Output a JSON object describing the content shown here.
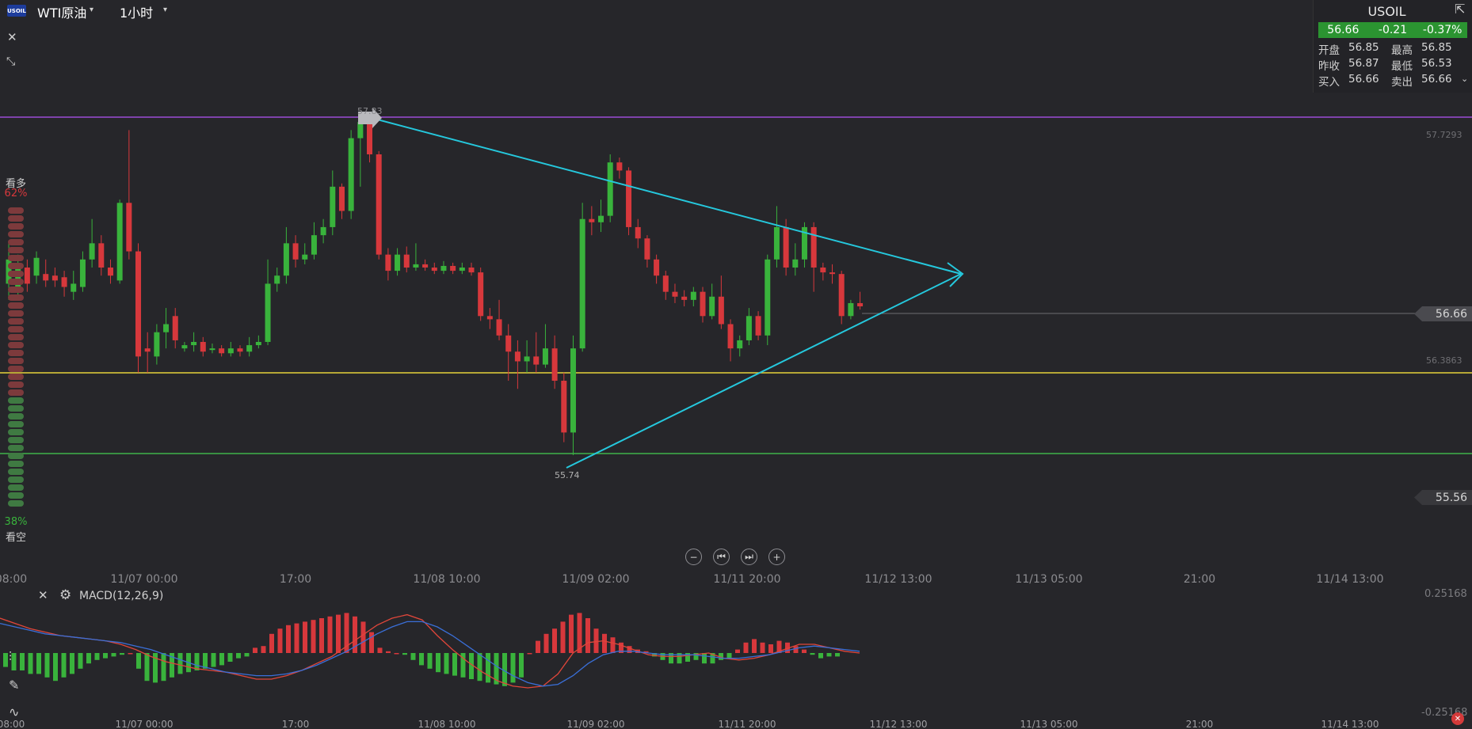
{
  "header": {
    "symbol_logo": "USOIL",
    "symbol_name": "WTI原油",
    "timeframe": "1小时",
    "dropdown_icon": "chevron-down-icon"
  },
  "quote": {
    "title": "USOIL",
    "price": "56.66",
    "change": "-0.21",
    "change_pct": "-0.37%",
    "rows": [
      {
        "l1": "开盘",
        "v1": "56.85",
        "l2": "最高",
        "v2": "56.85"
      },
      {
        "l1": "昨收",
        "v1": "56.87",
        "l2": "最低",
        "v2": "56.53"
      },
      {
        "l1": "买入",
        "v1": "56.66",
        "l2": "卖出",
        "v2": "56.66"
      }
    ],
    "up_color": "#2b9431"
  },
  "sentiment": {
    "bull_label": "看多",
    "bull_pct": "62%",
    "bear_pct": "38%",
    "bear_label": "看空",
    "bull_fraction": 0.62
  },
  "price_tags": {
    "current": "56.66",
    "low_right": "55.56",
    "top_level": "57.7293",
    "mid_level": "56.3863",
    "high_label": "57.83",
    "low_label": "55.74"
  },
  "x_axis_labels": [
    "08:00",
    "11/07 00:00",
    "17:00",
    "11/08 10:00",
    "11/09 02:00",
    "11/11 20:00",
    "11/12 13:00",
    "11/13 05:00",
    "21:00",
    "11/14 13:00"
  ],
  "macd": {
    "label": "MACD(12,26,9)",
    "top_value": "0.25168",
    "bottom_value": "-0.25168"
  },
  "colors": {
    "up": "#39b33c",
    "down": "#d7383c",
    "background": "#26262a",
    "purple_line": "#9c4bd6",
    "yellow_line": "#e6d23a",
    "green_line": "#3fb34a",
    "trend_line": "#25c8dd"
  },
  "chart_data": {
    "type": "candlestick",
    "title": "WTI原油",
    "timeframe": "1小时",
    "horizontal_lines": [
      57.83,
      56.3863,
      55.56
    ],
    "current_price": 56.66,
    "candles": [
      {
        "o": 56.8,
        "c": 56.95,
        "h": 57.05,
        "l": 56.7
      },
      {
        "o": 56.75,
        "c": 56.9,
        "h": 56.98,
        "l": 56.7
      },
      {
        "o": 56.9,
        "c": 56.8,
        "h": 56.95,
        "l": 56.75
      },
      {
        "o": 56.85,
        "c": 56.96,
        "h": 57.0,
        "l": 56.8
      },
      {
        "o": 56.86,
        "c": 56.82,
        "h": 56.95,
        "l": 56.78
      },
      {
        "o": 56.85,
        "c": 56.82,
        "h": 56.9,
        "l": 56.78
      },
      {
        "o": 56.84,
        "c": 56.78,
        "h": 56.88,
        "l": 56.72
      },
      {
        "o": 56.75,
        "c": 56.8,
        "h": 56.88,
        "l": 56.7
      },
      {
        "o": 56.78,
        "c": 56.95,
        "h": 57.0,
        "l": 56.75
      },
      {
        "o": 56.95,
        "c": 57.05,
        "h": 57.2,
        "l": 56.9
      },
      {
        "o": 57.05,
        "c": 56.9,
        "h": 57.1,
        "l": 56.85
      },
      {
        "o": 56.9,
        "c": 56.85,
        "h": 56.95,
        "l": 56.8
      },
      {
        "o": 56.82,
        "c": 57.3,
        "h": 57.32,
        "l": 56.8
      },
      {
        "o": 57.3,
        "c": 57.0,
        "h": 57.75,
        "l": 56.95
      },
      {
        "o": 57.0,
        "c": 56.35,
        "h": 57.05,
        "l": 56.25
      },
      {
        "o": 56.4,
        "c": 56.38,
        "h": 56.5,
        "l": 56.25
      },
      {
        "o": 56.35,
        "c": 56.5,
        "h": 56.55,
        "l": 56.3
      },
      {
        "o": 56.5,
        "c": 56.55,
        "h": 56.65,
        "l": 56.4
      },
      {
        "o": 56.6,
        "c": 56.45,
        "h": 56.65,
        "l": 56.4
      },
      {
        "o": 56.4,
        "c": 56.42,
        "h": 56.44,
        "l": 56.38
      },
      {
        "o": 56.42,
        "c": 56.44,
        "h": 56.5,
        "l": 56.38
      },
      {
        "o": 56.44,
        "c": 56.38,
        "h": 56.47,
        "l": 56.35
      },
      {
        "o": 56.39,
        "c": 56.4,
        "h": 56.43,
        "l": 56.37
      },
      {
        "o": 56.4,
        "c": 56.37,
        "h": 56.42,
        "l": 56.35
      },
      {
        "o": 56.37,
        "c": 56.4,
        "h": 56.44,
        "l": 56.35
      },
      {
        "o": 56.4,
        "c": 56.38,
        "h": 56.42,
        "l": 56.35
      },
      {
        "o": 56.38,
        "c": 56.42,
        "h": 56.47,
        "l": 56.35
      },
      {
        "o": 56.42,
        "c": 56.44,
        "h": 56.48,
        "l": 56.4
      },
      {
        "o": 56.44,
        "c": 56.8,
        "h": 56.95,
        "l": 56.42
      },
      {
        "o": 56.8,
        "c": 56.85,
        "h": 56.9,
        "l": 56.75
      },
      {
        "o": 56.85,
        "c": 57.05,
        "h": 57.15,
        "l": 56.8
      },
      {
        "o": 57.05,
        "c": 56.95,
        "h": 57.1,
        "l": 56.9
      },
      {
        "o": 56.95,
        "c": 56.98,
        "h": 57.05,
        "l": 56.92
      },
      {
        "o": 56.98,
        "c": 57.1,
        "h": 57.18,
        "l": 56.95
      },
      {
        "o": 57.1,
        "c": 57.15,
        "h": 57.2,
        "l": 57.05
      },
      {
        "o": 57.15,
        "c": 57.4,
        "h": 57.5,
        "l": 57.1
      },
      {
        "o": 57.4,
        "c": 57.25,
        "h": 57.42,
        "l": 57.2
      },
      {
        "o": 57.25,
        "c": 57.7,
        "h": 57.75,
        "l": 57.2
      },
      {
        "o": 57.7,
        "c": 57.8,
        "h": 57.83,
        "l": 57.4
      },
      {
        "o": 57.8,
        "c": 57.6,
        "h": 57.82,
        "l": 57.55
      },
      {
        "o": 57.6,
        "c": 56.98,
        "h": 57.62,
        "l": 56.95
      },
      {
        "o": 56.98,
        "c": 56.88,
        "h": 57.02,
        "l": 56.82
      },
      {
        "o": 56.88,
        "c": 56.98,
        "h": 57.02,
        "l": 56.85
      },
      {
        "o": 56.98,
        "c": 56.9,
        "h": 57.03,
        "l": 56.87
      },
      {
        "o": 56.9,
        "c": 56.92,
        "h": 57.05,
        "l": 56.88
      },
      {
        "o": 56.92,
        "c": 56.9,
        "h": 56.95,
        "l": 56.88
      },
      {
        "o": 56.9,
        "c": 56.88,
        "h": 56.93,
        "l": 56.86
      },
      {
        "o": 56.88,
        "c": 56.91,
        "h": 56.94,
        "l": 56.86
      },
      {
        "o": 56.91,
        "c": 56.88,
        "h": 56.93,
        "l": 56.86
      },
      {
        "o": 56.88,
        "c": 56.9,
        "h": 56.93,
        "l": 56.86
      },
      {
        "o": 56.9,
        "c": 56.87,
        "h": 56.93,
        "l": 56.85
      },
      {
        "o": 56.87,
        "c": 56.6,
        "h": 56.9,
        "l": 56.57
      },
      {
        "o": 56.6,
        "c": 56.58,
        "h": 56.65,
        "l": 56.52
      },
      {
        "o": 56.58,
        "c": 56.48,
        "h": 56.7,
        "l": 56.45
      },
      {
        "o": 56.48,
        "c": 56.38,
        "h": 56.55,
        "l": 56.2
      },
      {
        "o": 56.38,
        "c": 56.32,
        "h": 56.45,
        "l": 56.15
      },
      {
        "o": 56.32,
        "c": 56.35,
        "h": 56.45,
        "l": 56.25
      },
      {
        "o": 56.35,
        "c": 56.3,
        "h": 56.5,
        "l": 56.25
      },
      {
        "o": 56.3,
        "c": 56.4,
        "h": 56.55,
        "l": 56.28
      },
      {
        "o": 56.4,
        "c": 56.2,
        "h": 56.48,
        "l": 56.15
      },
      {
        "o": 56.2,
        "c": 55.88,
        "h": 56.25,
        "l": 55.82
      },
      {
        "o": 55.88,
        "c": 56.4,
        "h": 56.48,
        "l": 55.74
      },
      {
        "o": 56.4,
        "c": 57.2,
        "h": 57.3,
        "l": 56.38
      },
      {
        "o": 57.2,
        "c": 57.18,
        "h": 57.28,
        "l": 57.1
      },
      {
        "o": 57.18,
        "c": 57.22,
        "h": 57.32,
        "l": 57.12
      },
      {
        "o": 57.22,
        "c": 57.55,
        "h": 57.6,
        "l": 57.18
      },
      {
        "o": 57.55,
        "c": 57.5,
        "h": 57.58,
        "l": 57.45
      },
      {
        "o": 57.5,
        "c": 57.15,
        "h": 57.52,
        "l": 57.1
      },
      {
        "o": 57.15,
        "c": 57.08,
        "h": 57.2,
        "l": 57.02
      },
      {
        "o": 57.08,
        "c": 56.95,
        "h": 57.1,
        "l": 56.9
      },
      {
        "o": 56.95,
        "c": 56.85,
        "h": 56.98,
        "l": 56.8
      },
      {
        "o": 56.85,
        "c": 56.75,
        "h": 56.88,
        "l": 56.7
      },
      {
        "o": 56.75,
        "c": 56.72,
        "h": 56.8,
        "l": 56.68
      },
      {
        "o": 56.72,
        "c": 56.7,
        "h": 56.76,
        "l": 56.66
      },
      {
        "o": 56.7,
        "c": 56.75,
        "h": 56.78,
        "l": 56.66
      },
      {
        "o": 56.75,
        "c": 56.6,
        "h": 56.78,
        "l": 56.56
      },
      {
        "o": 56.6,
        "c": 56.72,
        "h": 56.8,
        "l": 56.58
      },
      {
        "o": 56.72,
        "c": 56.55,
        "h": 56.85,
        "l": 56.52
      },
      {
        "o": 56.55,
        "c": 56.4,
        "h": 56.58,
        "l": 56.32
      },
      {
        "o": 56.4,
        "c": 56.45,
        "h": 56.48,
        "l": 56.35
      },
      {
        "o": 56.45,
        "c": 56.6,
        "h": 56.65,
        "l": 56.42
      },
      {
        "o": 56.6,
        "c": 56.48,
        "h": 56.63,
        "l": 56.45
      },
      {
        "o": 56.48,
        "c": 56.95,
        "h": 56.98,
        "l": 56.42
      },
      {
        "o": 56.95,
        "c": 57.15,
        "h": 57.28,
        "l": 56.9
      },
      {
        "o": 57.15,
        "c": 56.9,
        "h": 57.2,
        "l": 56.85
      },
      {
        "o": 56.9,
        "c": 56.95,
        "h": 57.05,
        "l": 56.85
      },
      {
        "o": 56.95,
        "c": 57.15,
        "h": 57.18,
        "l": 56.9
      },
      {
        "o": 57.15,
        "c": 56.9,
        "h": 57.18,
        "l": 56.75
      },
      {
        "o": 56.9,
        "c": 56.87,
        "h": 56.93,
        "l": 56.82
      },
      {
        "o": 56.87,
        "c": 56.86,
        "h": 56.92,
        "l": 56.8
      },
      {
        "o": 56.86,
        "c": 56.6,
        "h": 56.88,
        "l": 56.55
      },
      {
        "o": 56.6,
        "c": 56.68,
        "h": 56.7,
        "l": 56.58
      },
      {
        "o": 56.68,
        "c": 56.66,
        "h": 56.75,
        "l": 56.64
      }
    ],
    "macd_hist": [
      -0.08,
      -0.1,
      -0.1,
      -0.12,
      -0.12,
      -0.14,
      -0.16,
      -0.14,
      -0.12,
      -0.09,
      -0.06,
      -0.04,
      -0.03,
      -0.02,
      -0.01,
      0.0,
      -0.09,
      -0.16,
      -0.17,
      -0.16,
      -0.14,
      -0.12,
      -0.11,
      -0.1,
      -0.09,
      -0.08,
      -0.07,
      -0.05,
      -0.03,
      -0.02,
      0.03,
      0.04,
      0.11,
      0.14,
      0.16,
      0.17,
      0.18,
      0.19,
      0.2,
      0.21,
      0.22,
      0.23,
      0.21,
      0.18,
      0.12,
      0.03,
      0.01,
      0.0,
      -0.01,
      -0.04,
      -0.07,
      -0.09,
      -0.11,
      -0.12,
      -0.13,
      -0.14,
      -0.15,
      -0.16,
      -0.17,
      -0.18,
      -0.19,
      -0.17,
      -0.14,
      0.0,
      0.07,
      0.11,
      0.14,
      0.18,
      0.22,
      0.23,
      0.2,
      0.14,
      0.11,
      0.09,
      0.06,
      0.04,
      0.02,
      0.01,
      -0.02,
      -0.04,
      -0.06,
      -0.06,
      -0.05,
      -0.04,
      -0.06,
      -0.06,
      -0.04,
      -0.03,
      0.02,
      0.06,
      0.08,
      0.06,
      0.05,
      0.07,
      0.06,
      0.04,
      0.02,
      -0.01,
      -0.03,
      -0.02,
      -0.02
    ],
    "macd_line": [
      0.2,
      0.17,
      0.14,
      0.12,
      0.1,
      0.09,
      0.08,
      0.07,
      0.05,
      0.02,
      -0.02,
      -0.05,
      -0.07,
      -0.09,
      -0.1,
      -0.11,
      -0.13,
      -0.15,
      -0.15,
      -0.13,
      -0.1,
      -0.06,
      -0.02,
      0.04,
      0.1,
      0.16,
      0.2,
      0.22,
      0.19,
      0.1,
      0.02,
      -0.05,
      -0.11,
      -0.16,
      -0.19,
      -0.2,
      -0.19,
      -0.12,
      0.0,
      0.06,
      0.07,
      0.05,
      0.02,
      -0.01,
      -0.02,
      -0.02,
      -0.01,
      0.0,
      -0.03,
      -0.04,
      -0.03,
      -0.01,
      0.02,
      0.05,
      0.05,
      0.03,
      0.01,
      0.0
    ],
    "signal_line": [
      0.17,
      0.15,
      0.13,
      0.11,
      0.1,
      0.09,
      0.08,
      0.07,
      0.06,
      0.04,
      0.02,
      -0.01,
      -0.04,
      -0.07,
      -0.09,
      -0.11,
      -0.12,
      -0.13,
      -0.13,
      -0.12,
      -0.1,
      -0.07,
      -0.03,
      0.01,
      0.06,
      0.11,
      0.15,
      0.18,
      0.18,
      0.15,
      0.1,
      0.04,
      -0.02,
      -0.08,
      -0.13,
      -0.17,
      -0.19,
      -0.18,
      -0.13,
      -0.06,
      -0.01,
      0.01,
      0.01,
      0.0,
      -0.01,
      -0.01,
      -0.01,
      -0.02,
      -0.03,
      -0.03,
      -0.02,
      -0.01,
      0.01,
      0.03,
      0.04,
      0.03,
      0.02,
      0.01
    ]
  }
}
